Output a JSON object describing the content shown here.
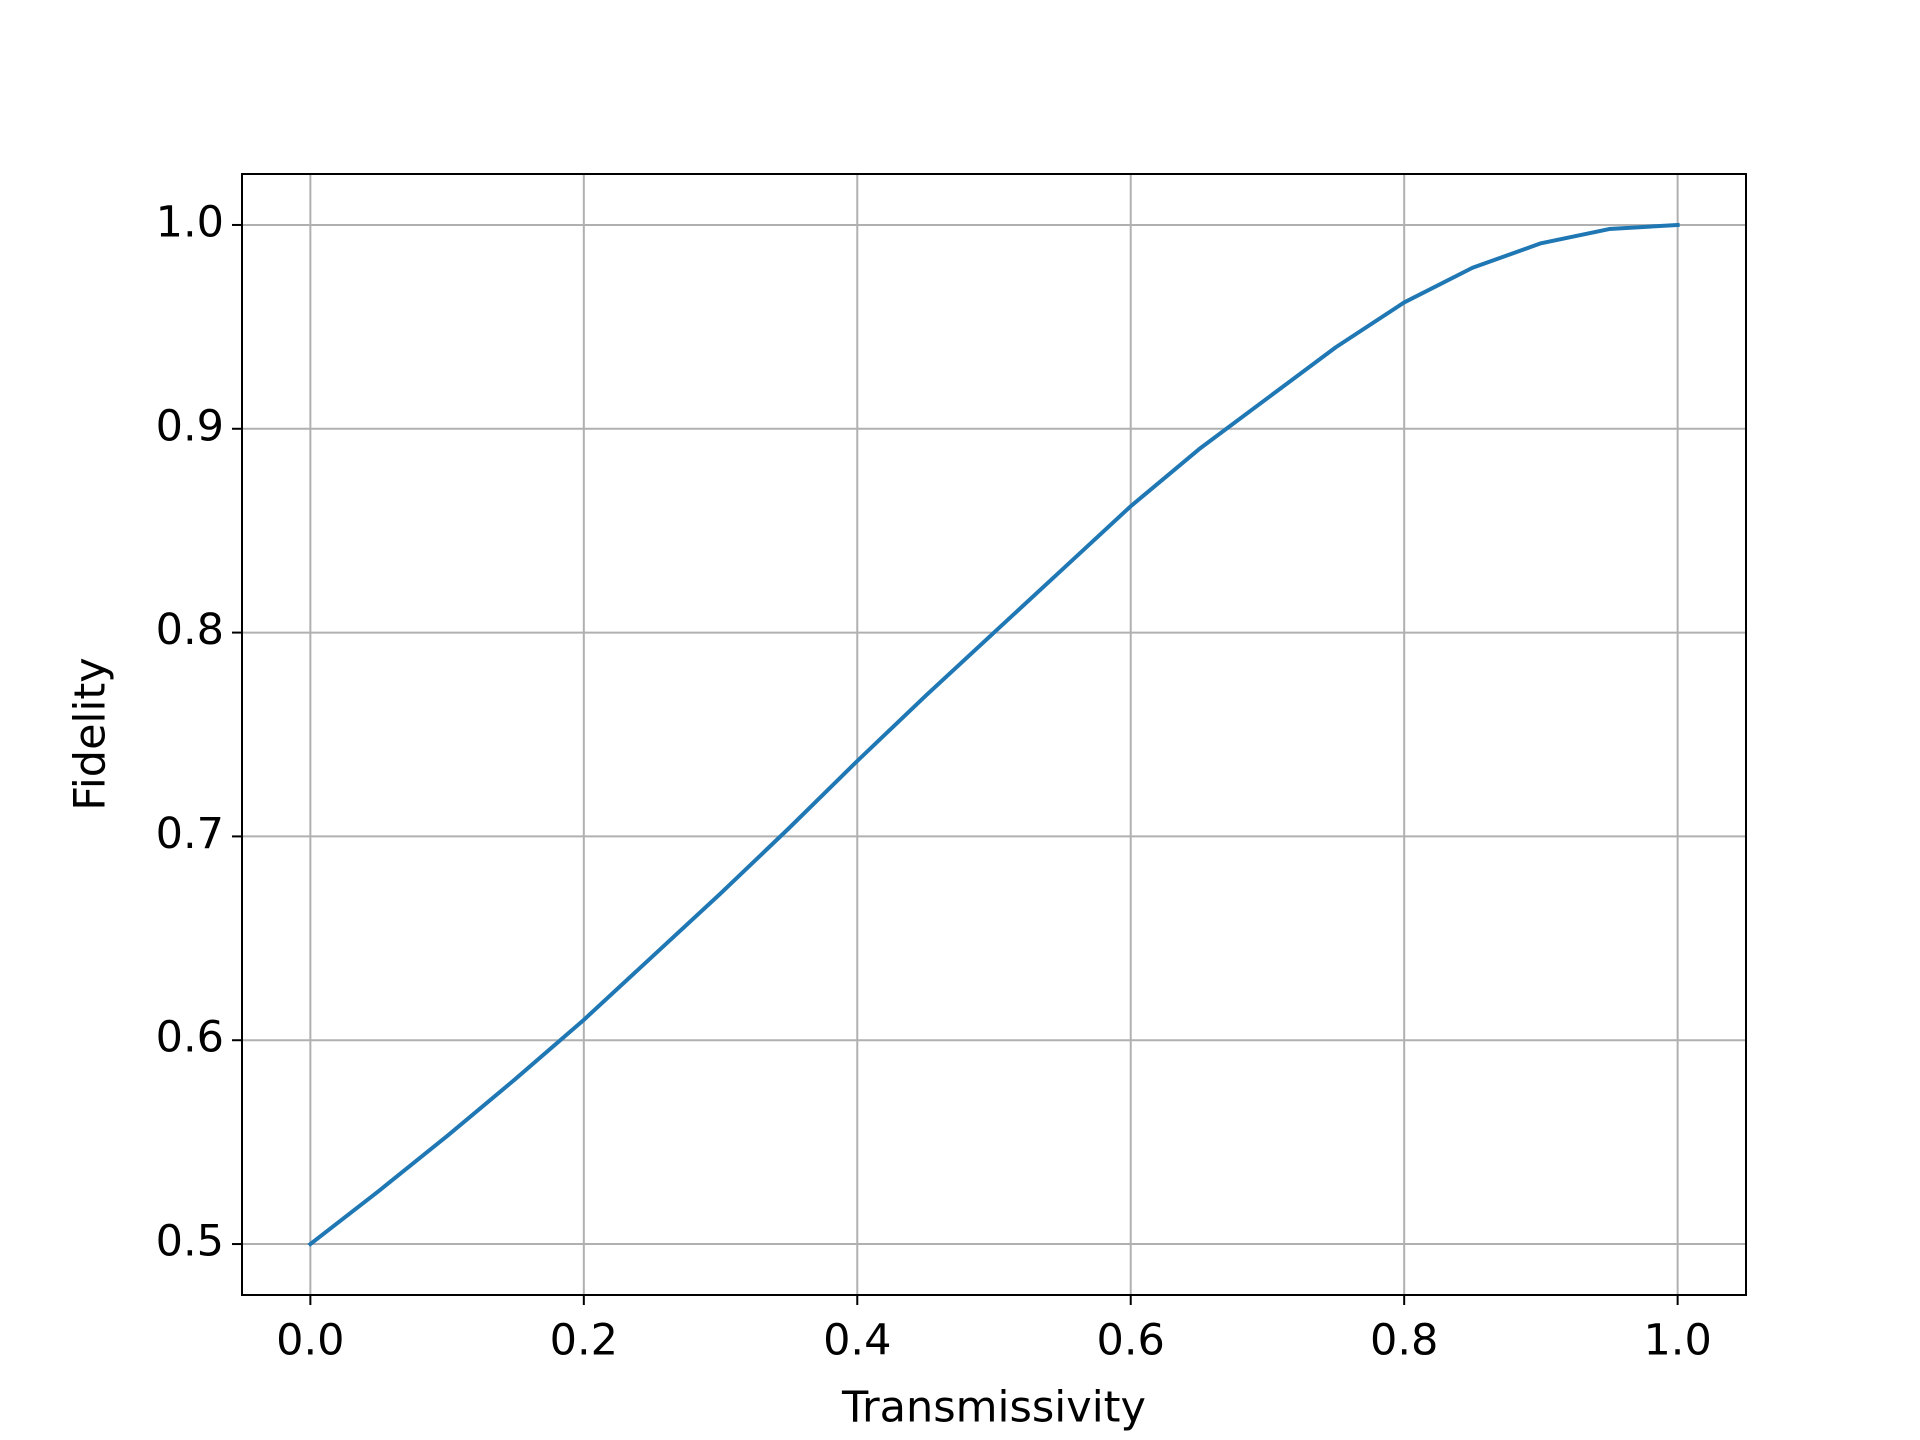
{
  "chart_data": {
    "type": "line",
    "x_label": "Transmissivity",
    "y_label": "Fidelity",
    "x": [
      0,
      0.05,
      0.1,
      0.15,
      0.2,
      0.25,
      0.3,
      0.35,
      0.4,
      0.45,
      0.5,
      0.55,
      0.6,
      0.65,
      0.7,
      0.75,
      0.8,
      0.85,
      0.9,
      0.95,
      1.0
    ],
    "series": [
      {
        "name": "Fidelity",
        "color": "#1f77b4",
        "values": [
          0.5,
          0.526,
          0.553,
          0.581,
          0.61,
          0.641,
          0.672,
          0.704,
          0.737,
          0.769,
          0.8,
          0.831,
          0.862,
          0.89,
          0.915,
          0.94,
          0.962,
          0.979,
          0.991,
          0.998,
          1.0
        ]
      }
    ],
    "xlim": [
      -0.05,
      1.05
    ],
    "xticks": [
      {
        "value": 0,
        "label": "0.0"
      },
      0.2,
      0.4,
      0.6,
      0.8,
      {
        "value": 1,
        "label": "1.0"
      }
    ],
    "ylim": [
      0.475,
      1.025
    ],
    "yticks": [
      0.5,
      0.6,
      0.7,
      0.8,
      0.9,
      {
        "value": 1,
        "label": "1.0"
      }
    ],
    "grid": true
  }
}
